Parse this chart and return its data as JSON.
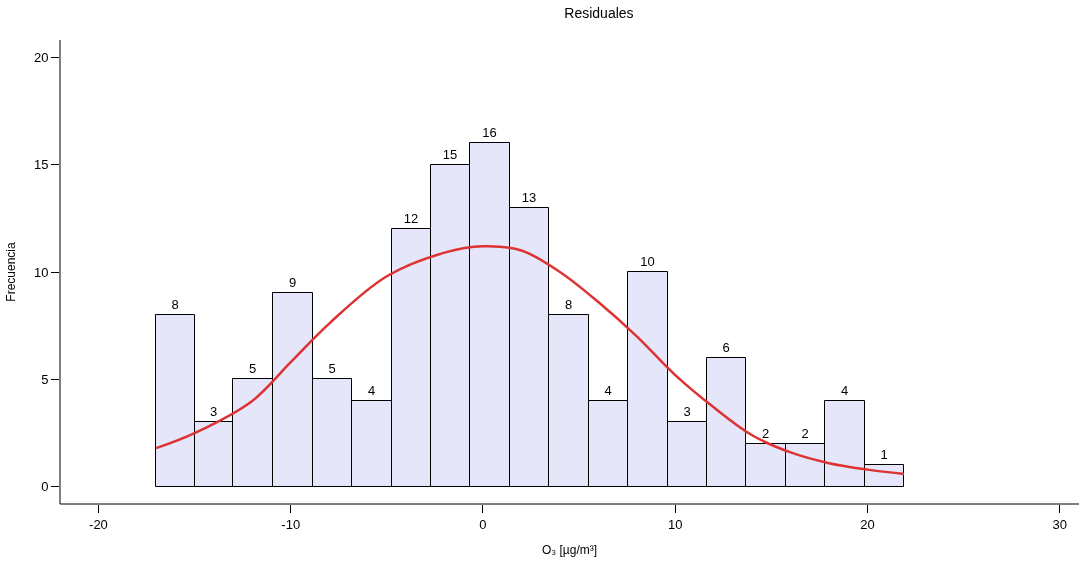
{
  "chart_data": {
    "type": "histogram",
    "title": "Residuales",
    "xlabel": "O₃ [µg/m³]",
    "ylabel": "Frecuencia",
    "bins": [
      -17.0,
      -15.0,
      -13.0,
      -10.9,
      -8.85,
      -6.8,
      -4.75,
      -2.7,
      -0.65,
      1.4,
      3.45,
      5.5,
      7.55,
      9.6,
      11.65,
      13.7,
      15.75,
      17.8,
      19.85,
      21.9
    ],
    "values": [
      8,
      3,
      5,
      9,
      5,
      4,
      12,
      15,
      16,
      13,
      8,
      4,
      10,
      3,
      6,
      2,
      2,
      4,
      1
    ],
    "value_labels": [
      "8",
      "3",
      "5",
      "9",
      "5",
      "4",
      "12",
      "15",
      "16",
      "13",
      "8",
      "4",
      "10",
      "3",
      "6",
      "2",
      "2",
      "4",
      "1"
    ],
    "color": "#e6e6fa",
    "series": [
      {
        "type": "line",
        "color": "#dd3333",
        "x": [
          -17,
          -15,
          -12,
          -10,
          -8,
          -5,
          -2,
          0,
          2,
          4,
          6,
          8,
          10,
          12,
          14,
          16,
          18,
          20,
          21.9
        ],
        "values": [
          1.8,
          2.5,
          4.0,
          5.8,
          7.6,
          9.8,
          10.9,
          11.2,
          11.0,
          10.0,
          8.6,
          7.0,
          5.2,
          3.7,
          2.4,
          1.6,
          1.1,
          0.8,
          0.6
        ]
      }
    ],
    "xlim": [
      -22,
      31
    ],
    "ylim": [
      -0.8,
      20.8
    ],
    "xticks": [
      -20,
      -10,
      0,
      10,
      20,
      30
    ],
    "yticks": [
      0,
      5,
      10,
      15,
      20
    ]
  }
}
